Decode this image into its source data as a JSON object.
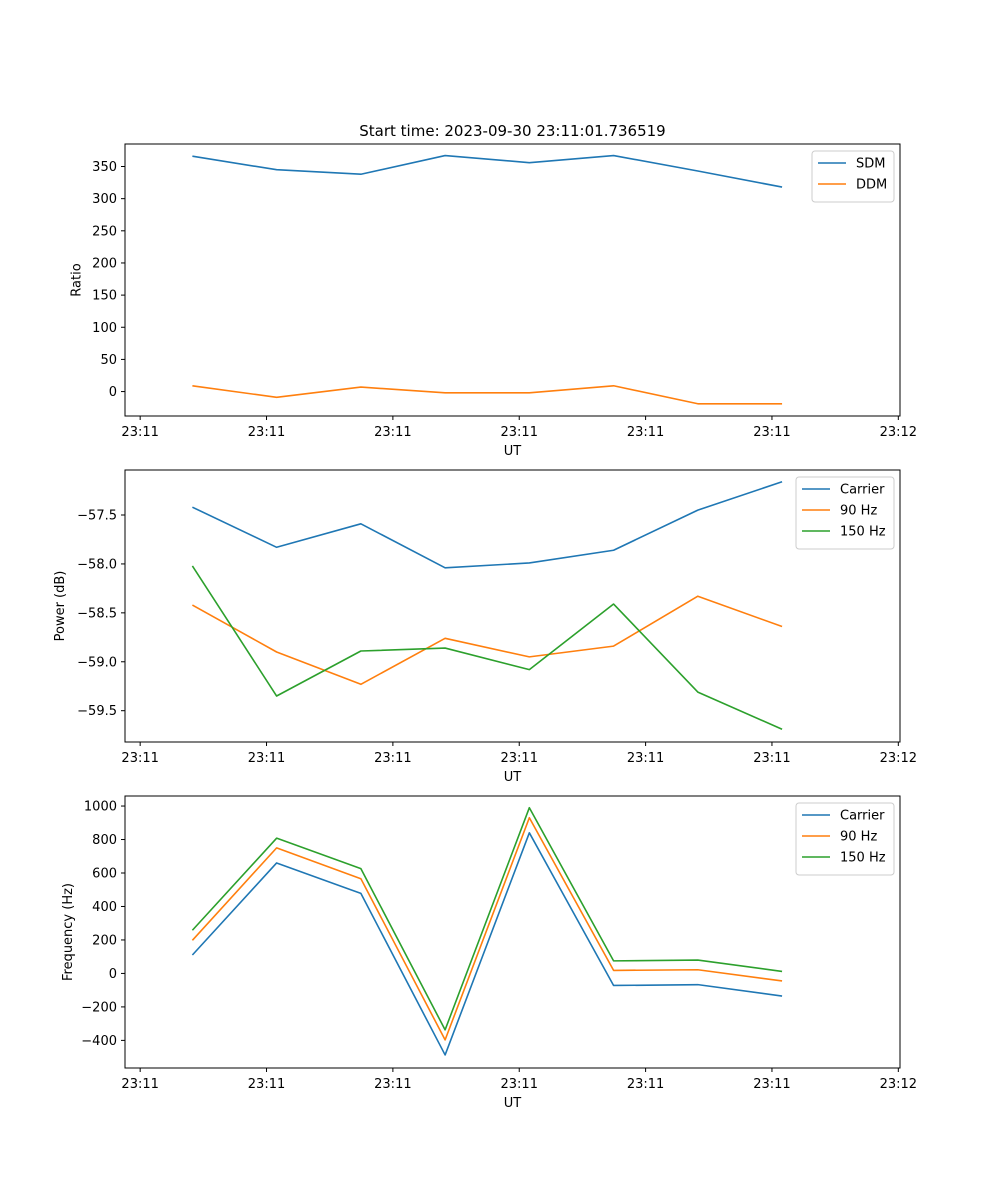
{
  "figure_title": "Start time: 2023-09-30 23:11:01.736519",
  "colors": {
    "blue": "#1f77b4",
    "orange": "#ff7f0e",
    "green": "#2ca02c"
  },
  "chart_data": [
    {
      "type": "line",
      "title": "Start time: 2023-09-30 23:11:01.736519",
      "xlabel": "UT",
      "ylabel": "Ratio",
      "x": [
        1,
        2,
        3,
        4,
        5,
        6,
        7,
        8
      ],
      "xlim": [
        0.2,
        9.4
      ],
      "x_ticks": [
        0.38,
        1.88,
        3.38,
        4.88,
        6.38,
        7.88,
        9.38
      ],
      "x_tick_labels": [
        "23:11",
        "23:11",
        "23:11",
        "23:11",
        "23:11",
        "23:11",
        "23:12"
      ],
      "ylim": [
        -38,
        385
      ],
      "y_ticks": [
        0,
        50,
        100,
        150,
        200,
        250,
        300,
        350
      ],
      "y_tick_labels": [
        "0",
        "50",
        "100",
        "150",
        "200",
        "250",
        "300",
        "350"
      ],
      "legend_position": "top-right",
      "series": [
        {
          "name": "SDM",
          "color": "#1f77b4",
          "values": [
            366,
            345,
            338,
            367,
            356,
            367,
            343,
            318
          ]
        },
        {
          "name": "DDM",
          "color": "#ff7f0e",
          "values": [
            9,
            -9,
            7,
            -2,
            -2,
            9,
            -19,
            -19
          ]
        }
      ]
    },
    {
      "type": "line",
      "title": "",
      "xlabel": "UT",
      "ylabel": "Power (dB)",
      "x": [
        1,
        2,
        3,
        4,
        5,
        6,
        7,
        8
      ],
      "xlim": [
        0.2,
        9.4
      ],
      "x_ticks": [
        0.38,
        1.88,
        3.38,
        4.88,
        6.38,
        7.88,
        9.38
      ],
      "x_tick_labels": [
        "23:11",
        "23:11",
        "23:11",
        "23:11",
        "23:11",
        "23:11",
        "23:12"
      ],
      "ylim": [
        -59.82,
        -57.04
      ],
      "y_ticks": [
        -57.5,
        -58.0,
        -58.5,
        -59.0,
        -59.5
      ],
      "y_tick_labels": [
        "−57.5",
        "−58.0",
        "−58.5",
        "−59.0",
        "−59.5"
      ],
      "legend_position": "top-right",
      "series": [
        {
          "name": "Carrier",
          "color": "#1f77b4",
          "values": [
            -57.42,
            -57.83,
            -57.59,
            -58.04,
            -57.99,
            -57.86,
            -57.45,
            -57.16
          ]
        },
        {
          "name": "90 Hz",
          "color": "#ff7f0e",
          "values": [
            -58.42,
            -58.9,
            -59.23,
            -58.76,
            -58.95,
            -58.84,
            -58.33,
            -58.64
          ]
        },
        {
          "name": "150 Hz",
          "color": "#2ca02c",
          "values": [
            -58.02,
            -59.35,
            -58.89,
            -58.86,
            -59.08,
            -58.41,
            -59.31,
            -59.69
          ]
        }
      ]
    },
    {
      "type": "line",
      "title": "",
      "xlabel": "UT",
      "ylabel": "Frequency (Hz)",
      "x": [
        1,
        2,
        3,
        4,
        5,
        6,
        7,
        8
      ],
      "xlim": [
        0.2,
        9.4
      ],
      "x_ticks": [
        0.38,
        1.88,
        3.38,
        4.88,
        6.38,
        7.88,
        9.38
      ],
      "x_tick_labels": [
        "23:11",
        "23:11",
        "23:11",
        "23:11",
        "23:11",
        "23:11",
        "23:12"
      ],
      "ylim": [
        -565,
        1060
      ],
      "y_ticks": [
        -400,
        -200,
        0,
        200,
        400,
        600,
        800,
        1000
      ],
      "y_tick_labels": [
        "−400",
        "−200",
        "0",
        "200",
        "400",
        "600",
        "800",
        "1000"
      ],
      "legend_position": "top-right",
      "series": [
        {
          "name": "Carrier",
          "color": "#1f77b4",
          "values": [
            110,
            660,
            478,
            -487,
            840,
            -72,
            -67,
            -135
          ]
        },
        {
          "name": "90 Hz",
          "color": "#ff7f0e",
          "values": [
            198,
            750,
            566,
            -397,
            930,
            18,
            22,
            -45
          ]
        },
        {
          "name": "150 Hz",
          "color": "#2ca02c",
          "values": [
            258,
            808,
            626,
            -337,
            990,
            75,
            80,
            12
          ]
        }
      ]
    }
  ]
}
